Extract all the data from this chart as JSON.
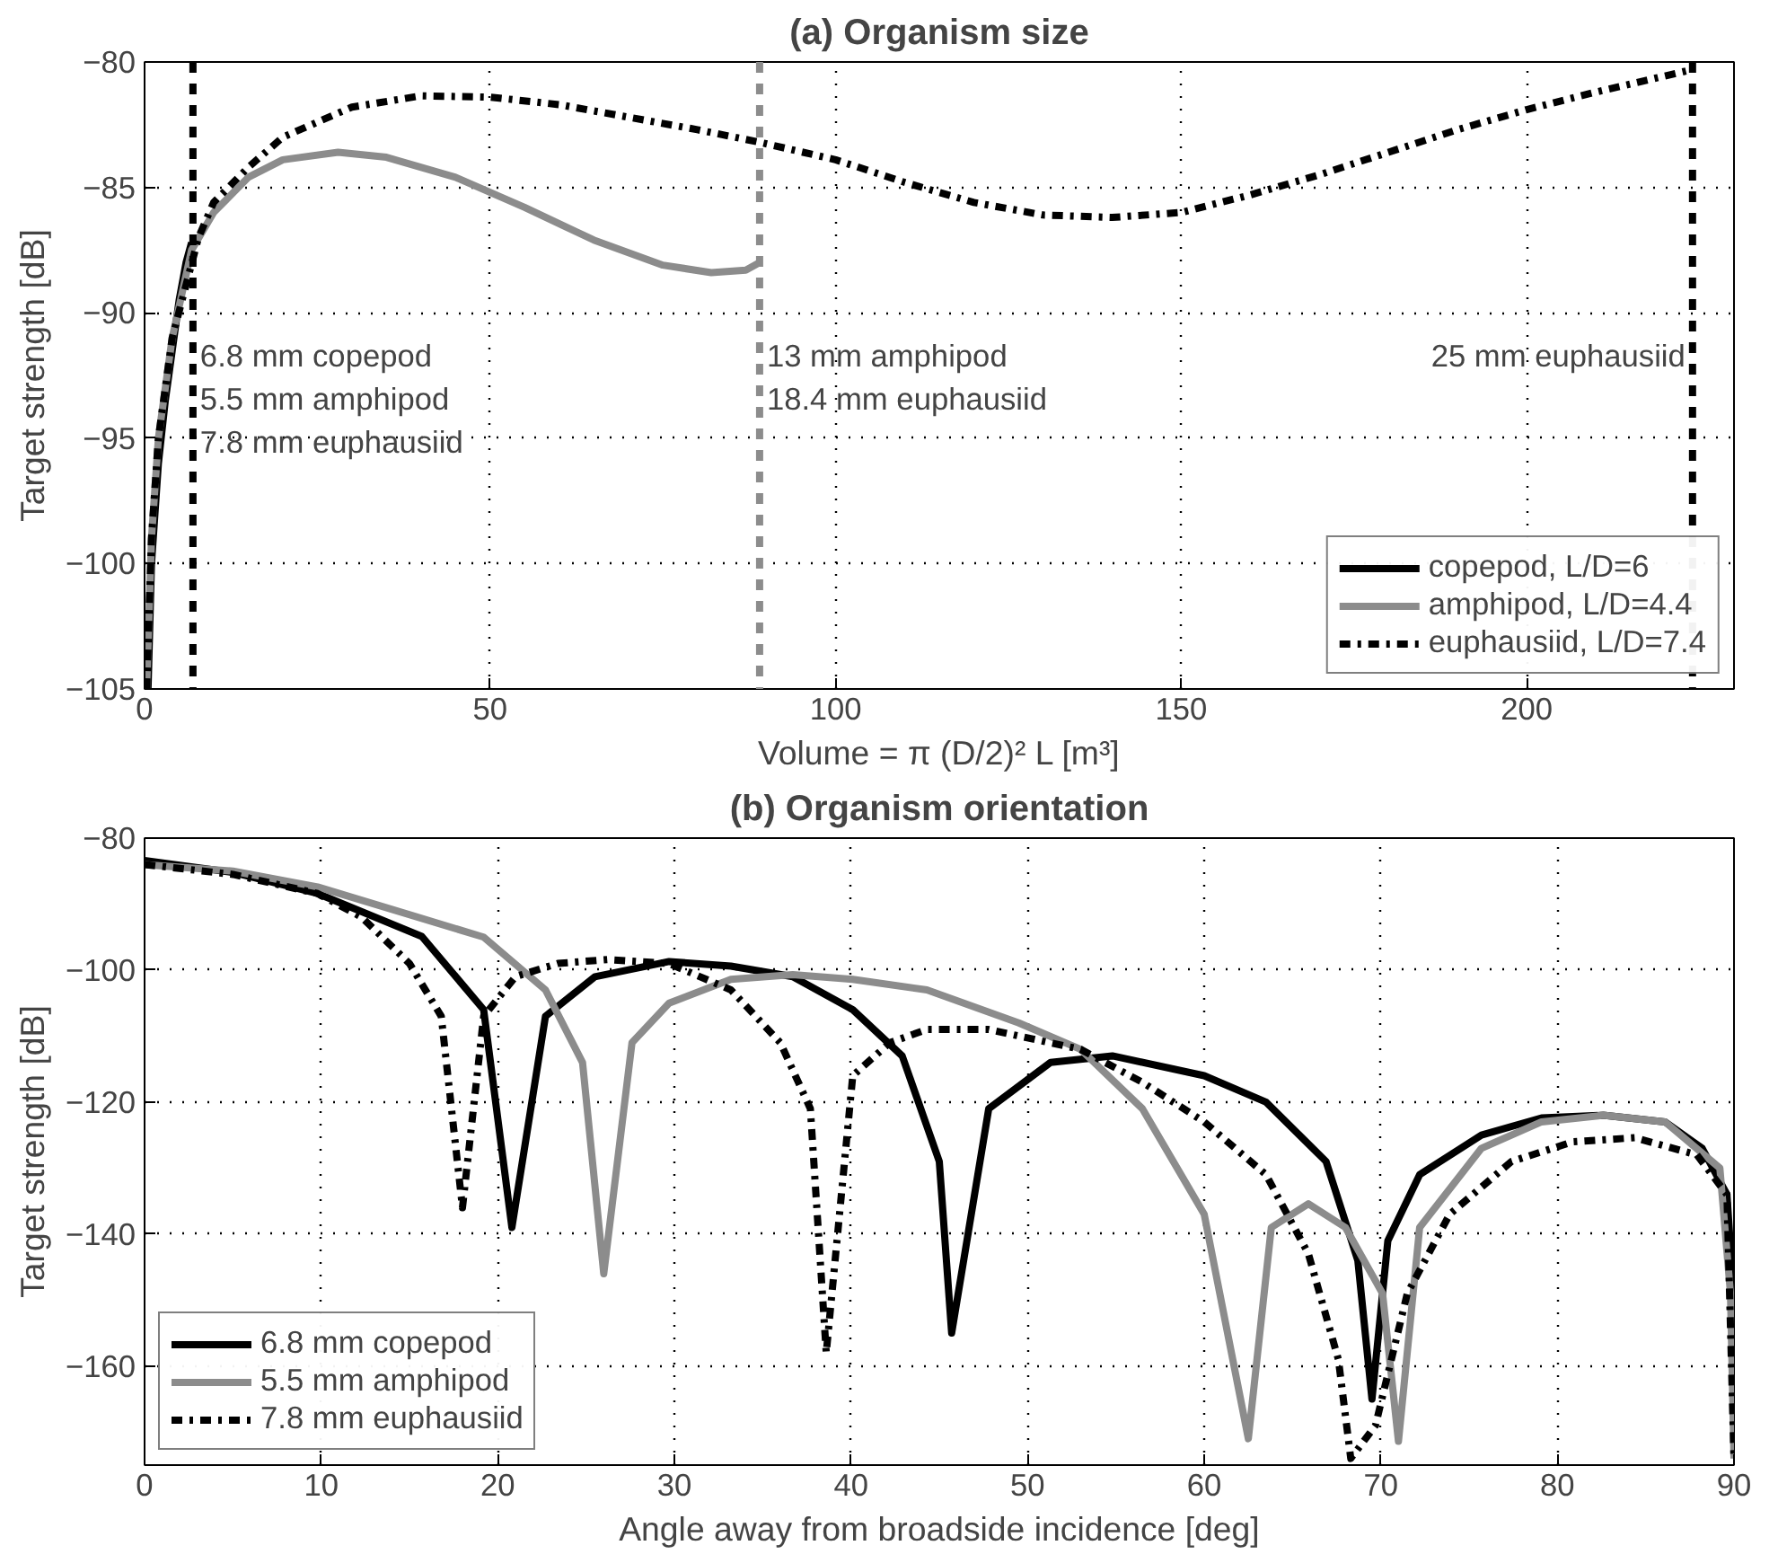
{
  "chart_data": [
    {
      "type": "line",
      "title": "(a) Organism size",
      "xlabel": "Volume = π (D/2)² L [m³]",
      "ylabel": "Target strength [dB]",
      "xlim": [
        0,
        230
      ],
      "ylim": [
        -105,
        -80
      ],
      "xticks": [
        0,
        50,
        100,
        150,
        200
      ],
      "yticks": [
        -105,
        -100,
        -95,
        -90,
        -85,
        -80
      ],
      "grid": true,
      "legend": "bottom right",
      "series": [
        {
          "name": "copepod, L/D=6",
          "color": "#000000",
          "line_style": "solid",
          "x": [
            0.5,
            1,
            2,
            3,
            4,
            5,
            6,
            6.8
          ],
          "values": [
            -105,
            -100,
            -96,
            -93.5,
            -91.5,
            -89.5,
            -88,
            -87.2
          ]
        },
        {
          "name": "amphipod, L/D=4.4",
          "color": "#8c8c8c",
          "line_style": "solid",
          "x": [
            0.3,
            1,
            2,
            4,
            6.8,
            10,
            15,
            20,
            28,
            35,
            45,
            55,
            65,
            75,
            82,
            87,
            89
          ],
          "values": [
            -105,
            -99,
            -95,
            -91,
            -87.5,
            -86,
            -84.6,
            -83.9,
            -83.6,
            -83.8,
            -84.6,
            -85.8,
            -87.1,
            -88.1,
            -88.4,
            -88.3,
            -88
          ]
        },
        {
          "name": "euphausiid, L/D=7.4",
          "color": "#000000",
          "line_style": "dashdot",
          "x": [
            0.3,
            1,
            2,
            4,
            7.8,
            10,
            15,
            20,
            30,
            40,
            50,
            60,
            70,
            80,
            89,
            100,
            110,
            120,
            130,
            140,
            150,
            160,
            170,
            180,
            190,
            200,
            210,
            224
          ],
          "values": [
            -105,
            -99,
            -95,
            -91,
            -87,
            -85.6,
            -84.2,
            -83,
            -81.8,
            -81.35,
            -81.4,
            -81.7,
            -82.2,
            -82.7,
            -83.2,
            -83.9,
            -84.8,
            -85.6,
            -86.1,
            -86.2,
            -86,
            -85.3,
            -84.5,
            -83.6,
            -82.7,
            -81.9,
            -81.2,
            -80.3
          ]
        }
      ],
      "ref_lines": [
        {
          "axis": "x",
          "value": 7,
          "label": "6.8 mm copepod\n5.5 mm amphipod\n7.8 mm euphausiid",
          "color": "#000000",
          "line_style": "dashed"
        },
        {
          "axis": "x",
          "value": 89,
          "label": "13 mm amphipod\n18.4 mm euphausiid",
          "color": "#8c8c8c",
          "line_style": "dashed"
        },
        {
          "axis": "x",
          "value": 224,
          "label": "25 mm euphausiid",
          "color": "#000000",
          "line_style": "dashed"
        }
      ]
    },
    {
      "type": "line",
      "title": "(b) Organism orientation",
      "xlabel": "Angle away from broadside incidence [deg]",
      "ylabel": "Target strength [dB]",
      "xlim": [
        0,
        90
      ],
      "ylim": [
        -175,
        -80
      ],
      "xticks": [
        0,
        10,
        20,
        30,
        40,
        50,
        60,
        70,
        80,
        90
      ],
      "yticks": [
        -160,
        -140,
        -120,
        -100,
        -80
      ],
      "grid": true,
      "legend": "bottom left",
      "series": [
        {
          "name": "6.8 mm copepod",
          "color": "#000000",
          "line_style": "solid",
          "x": [
            0,
            5,
            9.8,
            15.7,
            19.2,
            20.8,
            22.7,
            25.5,
            29.7,
            33.2,
            36.7,
            40.1,
            42.9,
            45,
            45.7,
            47.8,
            51.3,
            54.8,
            60,
            63.5,
            66.9,
            68.7,
            69.5,
            70.4,
            72.2,
            75.7,
            79.1,
            82.6,
            86.1,
            88.2,
            89.6,
            90
          ],
          "values": [
            -83.4,
            -85.2,
            -88.4,
            -94.9,
            -106,
            -139,
            -107,
            -101,
            -98.7,
            -99.4,
            -101,
            -106,
            -113,
            -129,
            -155,
            -121,
            -114,
            -113,
            -116,
            -120,
            -129,
            -144,
            -165,
            -141,
            -131,
            -125,
            -122.4,
            -122,
            -123,
            -127,
            -134,
            -150
          ]
        },
        {
          "name": "5.5 mm amphipod",
          "color": "#8c8c8c",
          "line_style": "solid",
          "x": [
            0,
            5,
            9.8,
            19.2,
            22.7,
            24.8,
            26,
            27.6,
            29.7,
            33.2,
            36.7,
            40.1,
            44.3,
            49.5,
            53,
            56.5,
            60,
            62.5,
            63.8,
            65.9,
            68,
            70.1,
            71,
            72.2,
            75.7,
            79.1,
            82.6,
            86.1,
            89.2,
            89.8,
            90
          ],
          "values": [
            -84,
            -85,
            -87.4,
            -95,
            -103,
            -114,
            -146,
            -111,
            -105,
            -101.4,
            -100.7,
            -101.4,
            -103,
            -108,
            -112,
            -121,
            -137,
            -171,
            -139,
            -135.4,
            -139,
            -149,
            -171.4,
            -139,
            -127,
            -123,
            -122,
            -123,
            -130,
            -149,
            -174
          ]
        },
        {
          "name": "7.8 mm euphausiid",
          "color": "#000000",
          "line_style": "dashdot",
          "x": [
            0,
            5,
            9.8,
            12.3,
            15,
            16.8,
            18,
            19.2,
            21,
            23.4,
            26.2,
            29.7,
            33.2,
            36,
            37.7,
            38.6,
            40.1,
            42.2,
            44.3,
            47.8,
            53,
            56.5,
            60,
            63.5,
            65.9,
            67.6,
            68.3,
            69.7,
            71.5,
            73.9,
            77.4,
            80.9,
            84.4,
            87.9,
            89.6,
            90
          ],
          "values": [
            -84,
            -85.5,
            -88.4,
            -92,
            -99,
            -107,
            -136,
            -107,
            -101,
            -99,
            -98.4,
            -99,
            -103,
            -111,
            -121,
            -158,
            -116,
            -111,
            -109,
            -109,
            -112,
            -117,
            -123,
            -131,
            -143,
            -159,
            -174,
            -169,
            -149,
            -137,
            -129,
            -126,
            -125.4,
            -128,
            -134,
            -174
          ]
        }
      ]
    }
  ]
}
